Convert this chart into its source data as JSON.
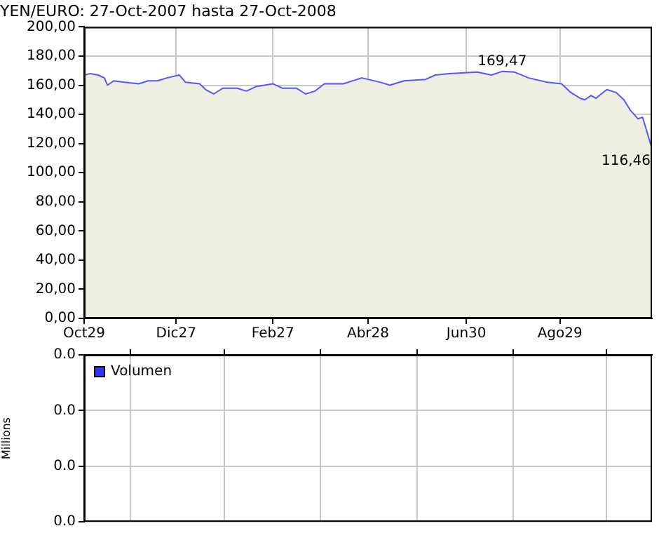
{
  "chart_data": [
    {
      "type": "area",
      "title": "YEN/EURO: 27-Oct-2007 hasta 27-Oct-2008",
      "x": [
        "2007-10-29",
        "2007-11-02",
        "2007-11-07",
        "2007-11-11",
        "2007-11-13",
        "2007-11-17",
        "2007-11-24",
        "2007-12-03",
        "2007-12-09",
        "2007-12-15",
        "2007-12-21",
        "2007-12-29",
        "2008-01-02",
        "2008-01-11",
        "2008-01-15",
        "2008-01-20",
        "2008-01-26",
        "2008-02-04",
        "2008-02-10",
        "2008-02-16",
        "2008-02-27",
        "2008-03-04",
        "2008-03-13",
        "2008-03-19",
        "2008-03-25",
        "2008-03-31",
        "2008-04-12",
        "2008-04-24",
        "2008-05-06",
        "2008-05-12",
        "2008-05-21",
        "2008-06-04",
        "2008-06-10",
        "2008-06-19",
        "2008-07-07",
        "2008-07-16",
        "2008-07-23",
        "2008-07-31",
        "2008-08-09",
        "2008-08-21",
        "2008-08-30",
        "2008-09-05",
        "2008-09-11",
        "2008-09-14",
        "2008-09-18",
        "2008-09-21",
        "2008-09-28",
        "2008-10-04",
        "2008-10-09",
        "2008-10-13",
        "2008-10-18",
        "2008-10-21",
        "2008-10-27"
      ],
      "series": [
        {
          "color": "#5555ff",
          "values": [
            167,
            168,
            167,
            165,
            160,
            163,
            162,
            161,
            163,
            163,
            165,
            167,
            162,
            161,
            157,
            154,
            158,
            158,
            156,
            159,
            161,
            158,
            158,
            154,
            156,
            161,
            161,
            165,
            162,
            160,
            163,
            164,
            167,
            168,
            169,
            167,
            169.47,
            169,
            165,
            162,
            161,
            155,
            151,
            150,
            153,
            151,
            157,
            155,
            150,
            143,
            137,
            138,
            116.46
          ]
        }
      ],
      "xlim": [
        "2007-10-29",
        "2008-10-27"
      ],
      "xticks": [
        {
          "value": "2007-10-29",
          "label": "Oct29"
        },
        {
          "value": "2007-12-27",
          "label": "Dic27"
        },
        {
          "value": "2008-02-27",
          "label": "Feb27"
        },
        {
          "value": "2008-04-28",
          "label": "Abr28"
        },
        {
          "value": "2008-06-30",
          "label": "Jun30"
        },
        {
          "value": "2008-08-29",
          "label": "Ago29"
        }
      ],
      "ylim": [
        0,
        200
      ],
      "yticks": [
        {
          "value": 0,
          "label": "0,00"
        },
        {
          "value": 20,
          "label": "20,00"
        },
        {
          "value": 40,
          "label": "40,00"
        },
        {
          "value": 60,
          "label": "60,00"
        },
        {
          "value": 80,
          "label": "80,00"
        },
        {
          "value": 100,
          "label": "100,00"
        },
        {
          "value": 120,
          "label": "120,00"
        },
        {
          "value": 140,
          "label": "140,00"
        },
        {
          "value": 160,
          "label": "160,00"
        },
        {
          "value": 180,
          "label": "180,00"
        },
        {
          "value": 200,
          "label": "200,00"
        }
      ],
      "annotations": [
        {
          "text": "169,47",
          "x": "2008-07-23",
          "y": 169.47
        },
        {
          "text": "116,46",
          "x": "2008-10-27",
          "y": 116.46
        }
      ],
      "grid": true
    },
    {
      "type": "bar",
      "ylabel": "Millions",
      "x": [
        "2007-10-29",
        "2008-10-27"
      ],
      "series": [
        {
          "name": "Volumen",
          "color": "#3333ff",
          "values": [
            0,
            0
          ]
        }
      ],
      "xlim": [
        "2007-10-29",
        "2008-10-27"
      ],
      "xticks": [
        {
          "value": "2007-10-29",
          "label": null
        },
        {
          "value": "2007-12-27",
          "label": null
        },
        {
          "value": "2008-02-27",
          "label": null
        },
        {
          "value": "2008-04-28",
          "label": null
        },
        {
          "value": "2008-06-30",
          "label": null
        },
        {
          "value": "2008-08-29",
          "label": null
        }
      ],
      "ylim": [
        0,
        0.03
      ],
      "yticks": [
        {
          "value": 0,
          "label": "0.0"
        },
        {
          "value": 0.01,
          "label": "0.0"
        },
        {
          "value": 0.02,
          "label": "0.0"
        },
        {
          "value": 0.03,
          "label": "0.0"
        }
      ],
      "tick_labels": "y",
      "legend": "top left",
      "grid": true
    }
  ]
}
